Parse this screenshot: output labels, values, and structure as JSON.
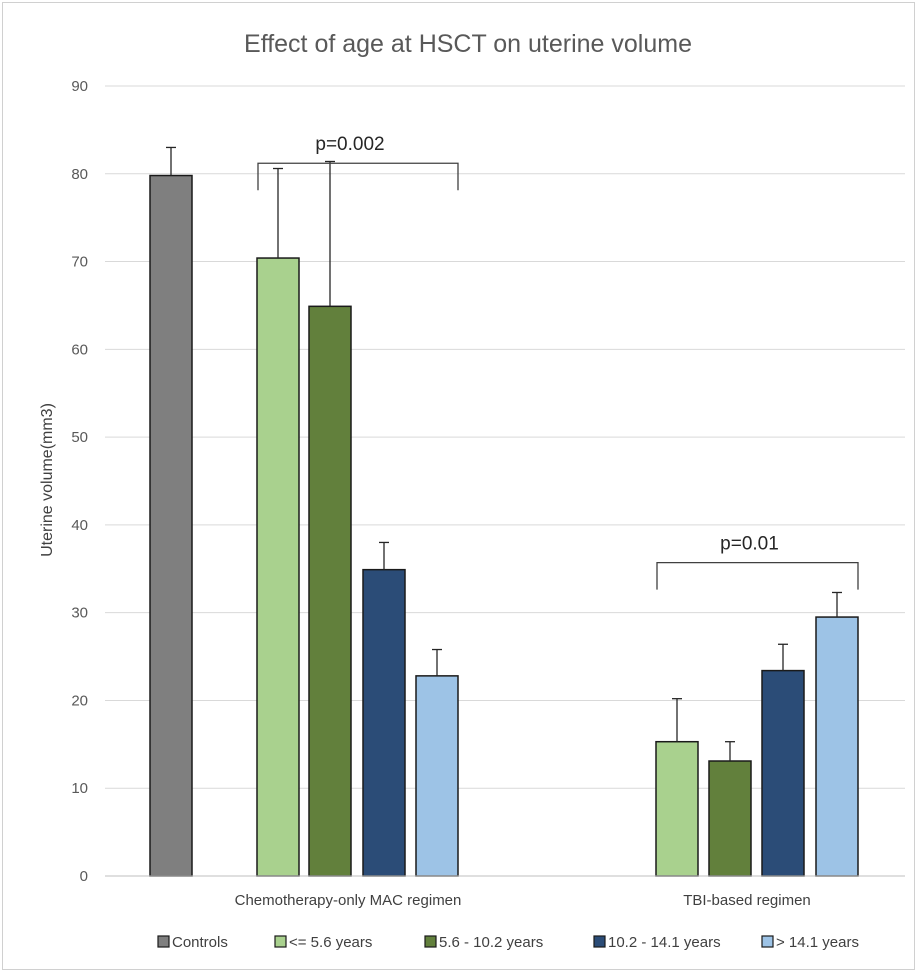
{
  "chart_data": {
    "type": "bar",
    "title": "Effect of age at HSCT on uterine volume",
    "xlabel": "",
    "ylabel": "Uterine volume(mm3)",
    "ylim": [
      0,
      90
    ],
    "yticks": [
      0,
      10,
      20,
      30,
      40,
      50,
      60,
      70,
      80,
      90
    ],
    "grid": true,
    "legend_position": "bottom",
    "categories": [
      "Chemotherapy-only MAC regimen",
      "TBI-based regimen"
    ],
    "series": [
      {
        "name": "Controls",
        "color": "#7f7f7f",
        "values": [
          79.8,
          null
        ],
        "errors": [
          3.2,
          null
        ]
      },
      {
        "name": "<= 5.6 years",
        "color": "#a9d18e",
        "values": [
          70.4,
          15.3
        ],
        "errors": [
          10.2,
          4.9
        ]
      },
      {
        "name": "5.6 - 10.2 years",
        "color": "#62803c",
        "values": [
          64.9,
          13.1
        ],
        "errors": [
          16.5,
          2.2
        ]
      },
      {
        "name": "10.2 - 14.1 years",
        "color": "#2b4c77",
        "values": [
          34.9,
          23.4
        ],
        "errors": [
          3.1,
          3.0
        ]
      },
      {
        "name": "> 14.1 years",
        "color": "#9dc3e6",
        "values": [
          22.8,
          29.5
        ],
        "errors": [
          3.0,
          2.8
        ]
      }
    ],
    "annotations": [
      {
        "text": "p=0.002",
        "category": 0,
        "from_series": 1,
        "to_series": 4,
        "y": 81.2
      },
      {
        "text": "p=0.01",
        "category": 1,
        "from_series": 1,
        "to_series": 4,
        "y": 35.7
      }
    ]
  }
}
